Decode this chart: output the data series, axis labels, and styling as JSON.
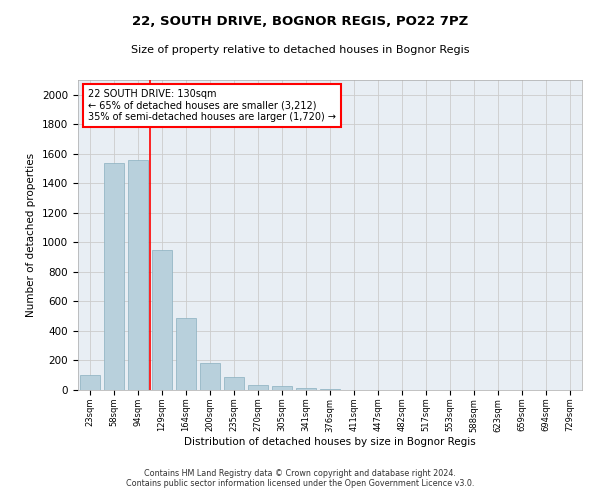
{
  "title1": "22, SOUTH DRIVE, BOGNOR REGIS, PO22 7PZ",
  "title2": "Size of property relative to detached houses in Bognor Regis",
  "xlabel": "Distribution of detached houses by size in Bognor Regis",
  "ylabel": "Number of detached properties",
  "categories": [
    "23sqm",
    "58sqm",
    "94sqm",
    "129sqm",
    "164sqm",
    "200sqm",
    "235sqm",
    "270sqm",
    "305sqm",
    "341sqm",
    "376sqm",
    "411sqm",
    "447sqm",
    "482sqm",
    "517sqm",
    "553sqm",
    "588sqm",
    "623sqm",
    "659sqm",
    "694sqm",
    "729sqm"
  ],
  "values": [
    105,
    1535,
    1560,
    950,
    490,
    180,
    85,
    35,
    25,
    15,
    10,
    0,
    0,
    0,
    0,
    0,
    0,
    0,
    0,
    0,
    0
  ],
  "bar_color": "#b8d0dc",
  "bar_edge_color": "#8ab0c0",
  "property_line_x": 2.5,
  "annotation_line1": "22 SOUTH DRIVE: 130sqm",
  "annotation_line2": "← 65% of detached houses are smaller (3,212)",
  "annotation_line3": "35% of semi-detached houses are larger (1,720) →",
  "annotation_box_color": "white",
  "annotation_box_edge_color": "red",
  "vline_color": "red",
  "ylim": [
    0,
    2100
  ],
  "yticks": [
    0,
    200,
    400,
    600,
    800,
    1000,
    1200,
    1400,
    1600,
    1800,
    2000
  ],
  "grid_color": "#cccccc",
  "bg_color": "#e8eef4",
  "footer1": "Contains HM Land Registry data © Crown copyright and database right 2024.",
  "footer2": "Contains public sector information licensed under the Open Government Licence v3.0."
}
